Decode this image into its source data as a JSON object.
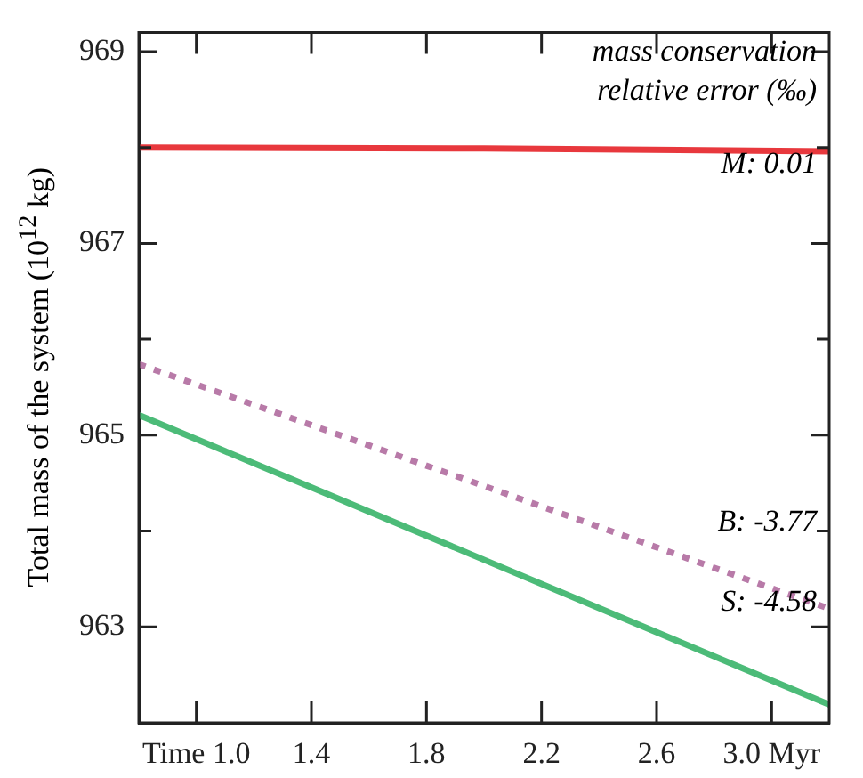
{
  "chart_data": {
    "type": "line",
    "ylabel": "Total mass of the system (10$^{12}$ kg)",
    "x": [
      0.8,
      2.0,
      3.2
    ],
    "series": [
      {
        "color": "#e8383d",
        "values": [
          968.0,
          967.99,
          967.96
        ],
        "line_style": "solid"
      },
      {
        "color": "#b87aa8",
        "values": [
          965.74,
          964.47,
          963.19
        ],
        "line_style": "dotted"
      },
      {
        "color": "#4cbb78",
        "values": [
          965.21,
          963.7,
          962.19
        ],
        "line_style": "solid"
      }
    ],
    "xlim": [
      0.8,
      3.2
    ],
    "xticks": [
      {
        "value": 1.0,
        "label": "Time 1.0"
      },
      {
        "value": 1.4,
        "label": "1.4"
      },
      {
        "value": 1.8,
        "label": "1.8"
      },
      {
        "value": 2.2,
        "label": "2.2"
      },
      {
        "value": 2.6,
        "label": "2.6"
      },
      {
        "value": 3.0,
        "label": "3.0 Myr"
      }
    ],
    "ylim": [
      962,
      969.2
    ],
    "yticks": [
      963,
      {
        "value": 964,
        "label": null
      },
      965,
      {
        "value": 966,
        "label": null
      },
      967,
      {
        "value": 968,
        "label": null
      },
      969
    ],
    "annotations": [
      "mass conservation relative error (‰)",
      "M: 0.01",
      "B: -3.77",
      "S: -4.58"
    ],
    "grid": false,
    "legend": false,
    "marker": "none"
  }
}
